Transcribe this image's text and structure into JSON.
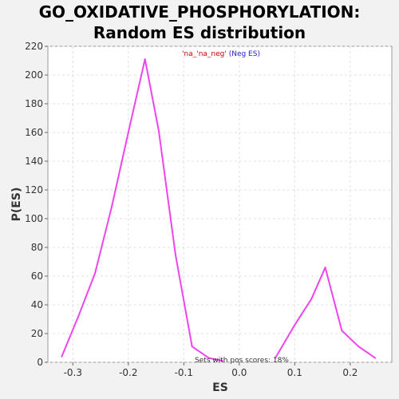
{
  "chart_data": {
    "type": "line",
    "title": "GO_OXIDATIVE_PHOSPHORYLATION: Random ES distribution",
    "xlabel": "ES",
    "ylabel": "P(ES)",
    "xlim": [
      -0.345,
      0.275
    ],
    "ylim": [
      0,
      220
    ],
    "xticks": [
      -0.3,
      -0.2,
      -0.1,
      0.0,
      0.1,
      0.2
    ],
    "xtick_labels": [
      "-0.3",
      "-0.2",
      "-0.1",
      "0.0",
      "0.1",
      "0.2"
    ],
    "yticks": [
      0,
      20,
      40,
      60,
      80,
      100,
      120,
      140,
      160,
      180,
      200,
      220
    ],
    "ytick_labels": [
      "0",
      "20",
      "40",
      "60",
      "80",
      "100",
      "120",
      "140",
      "160",
      "180",
      "200",
      "220"
    ],
    "grid": true,
    "line_color": "#ee44ee",
    "series": [
      {
        "segments": [
          {
            "x": [
              -0.32,
              -0.29,
              -0.26,
              -0.23,
              -0.2,
              -0.17,
              -0.145,
              -0.115,
              -0.085,
              -0.055,
              -0.03
            ],
            "y": [
              4,
              32,
              62,
              108,
              160,
              211,
              161,
              75,
              11,
              3,
              1
            ]
          },
          {
            "x": [
              0.065,
              0.1,
              0.13,
              0.155,
              0.185,
              0.215,
              0.245
            ],
            "y": [
              3,
              26,
              44,
              66,
              22,
              11,
              3
            ]
          }
        ]
      }
    ],
    "annotation_top": {
      "part1": "'na_",
      "part1_color": "#cc0000",
      "part2": "'na_neg'",
      "part2_color": "#cc0000",
      "part3": " (Neg ES)",
      "part3_color": "#2222cc"
    },
    "annotation_bottom": "Sets with pos scores: 18%"
  }
}
